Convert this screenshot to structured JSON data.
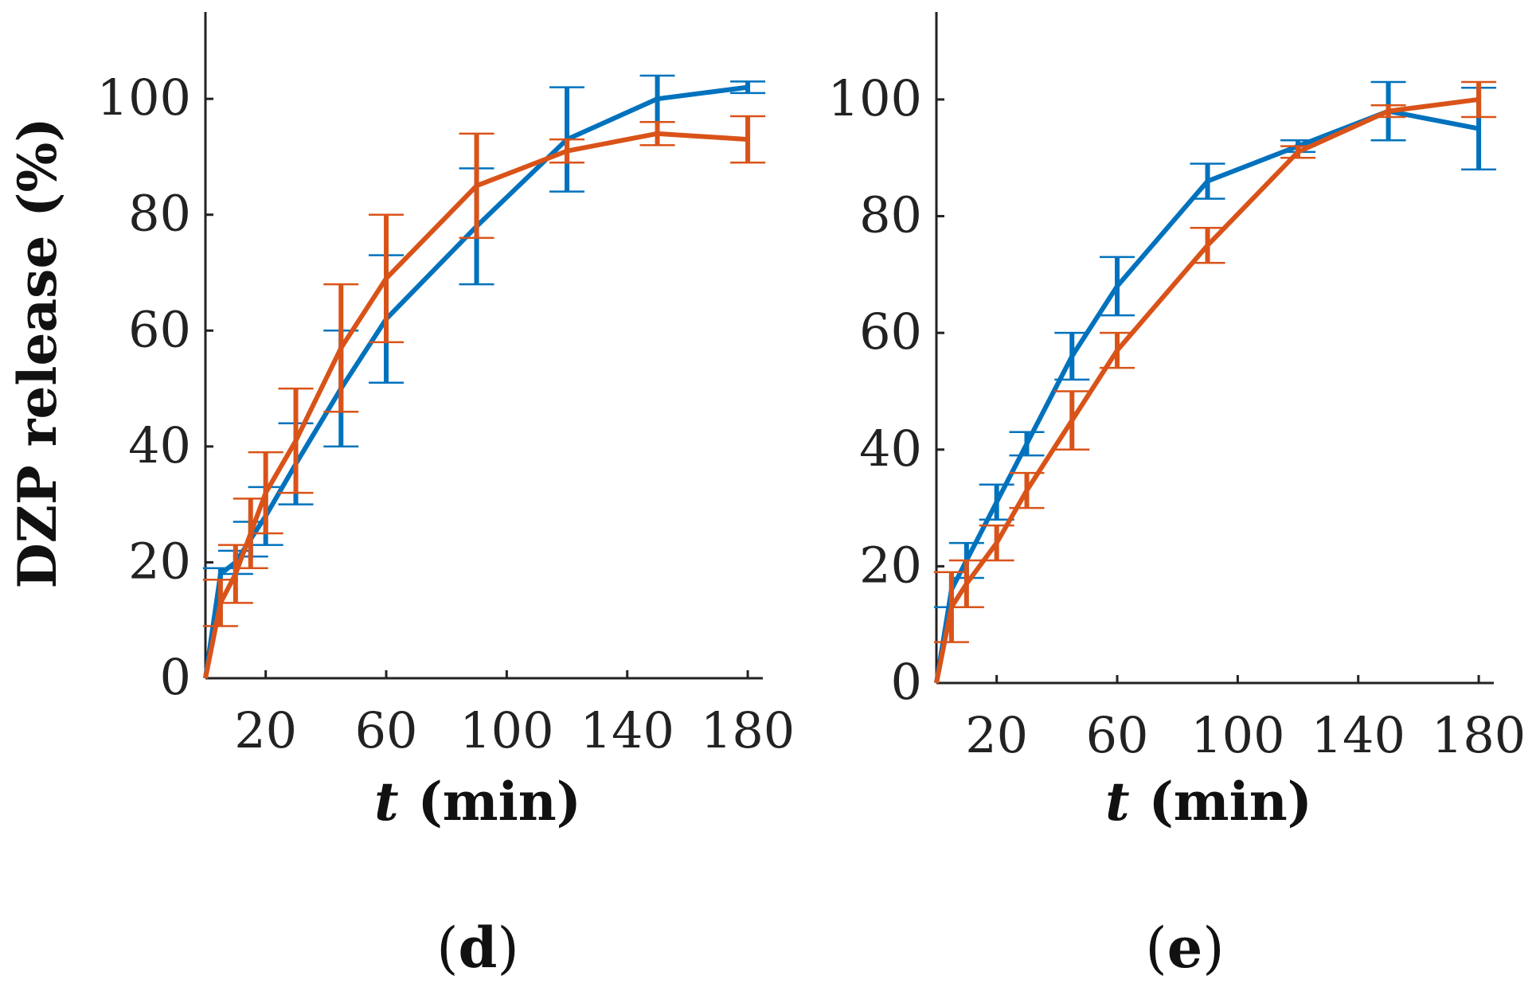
{
  "colors": {
    "series_a": "#0072BD",
    "series_b": "#D95319"
  },
  "chart_data": [
    {
      "type": "line",
      "panel_label": "d",
      "ylabel": "DZP release (%)",
      "xlabel_italic": "t",
      "xlabel_unit": "(min)",
      "xlim": [
        0,
        185
      ],
      "ylim": [
        0,
        115
      ],
      "xticks": [
        20,
        60,
        100,
        140,
        180
      ],
      "yticks": [
        0,
        20,
        40,
        60,
        80,
        100
      ],
      "series": [
        {
          "x": [
            0,
            5,
            10,
            15,
            20,
            30,
            45,
            60,
            90,
            120,
            150,
            180
          ],
          "y": [
            0,
            18,
            20,
            24,
            28,
            37,
            50,
            62,
            78,
            93,
            100,
            102
          ],
          "err": [
            0,
            1,
            2,
            3,
            5,
            7,
            10,
            11,
            10,
            9,
            4,
            1
          ]
        },
        {
          "x": [
            0,
            5,
            10,
            15,
            20,
            30,
            45,
            60,
            90,
            120,
            150,
            180
          ],
          "y": [
            0,
            13,
            18,
            25,
            32,
            41,
            57,
            69,
            85,
            91,
            94,
            93
          ],
          "err": [
            0,
            4,
            5,
            6,
            7,
            9,
            11,
            11,
            9,
            2,
            2,
            4
          ]
        }
      ]
    },
    {
      "type": "line",
      "panel_label": "e",
      "ylabel": "",
      "xlabel_italic": "t",
      "xlabel_unit": "(min)",
      "xlim": [
        0,
        185
      ],
      "ylim": [
        0,
        115
      ],
      "xticks": [
        20,
        60,
        100,
        140,
        180
      ],
      "yticks": [
        0,
        20,
        40,
        60,
        80,
        100
      ],
      "series": [
        {
          "x": [
            0,
            5,
            10,
            20,
            30,
            45,
            60,
            90,
            120,
            150,
            180
          ],
          "y": [
            0,
            16,
            21,
            31,
            41,
            56,
            68,
            86,
            92,
            98,
            95
          ],
          "err": [
            0,
            3,
            3,
            3,
            2,
            4,
            5,
            3,
            1,
            5,
            7
          ]
        },
        {
          "x": [
            0,
            5,
            10,
            20,
            30,
            45,
            60,
            90,
            120,
            150,
            180
          ],
          "y": [
            0,
            13,
            17,
            24,
            33,
            45,
            57,
            75,
            91,
            98,
            100
          ],
          "err": [
            0,
            6,
            4,
            3,
            3,
            5,
            3,
            3,
            1,
            1,
            3
          ]
        }
      ]
    }
  ]
}
